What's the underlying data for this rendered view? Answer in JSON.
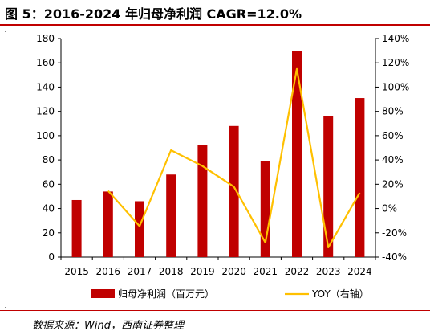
{
  "header": {
    "title": "图 5：2016-2024 年归母净利润 CAGR=12.0%"
  },
  "footer": {
    "source": "数据来源：Wind，西南证券整理"
  },
  "colors": {
    "bar": "#c00000",
    "line": "#ffc000",
    "rule": "#c00000"
  },
  "chart_data": {
    "type": "bar",
    "categories": [
      "2015",
      "2016",
      "2017",
      "2018",
      "2019",
      "2020",
      "2021",
      "2022",
      "2023",
      "2024"
    ],
    "series": [
      {
        "name": "归母净利润（百万元）",
        "type": "bar",
        "axis": "left",
        "values": [
          47,
          54,
          46,
          68,
          92,
          108,
          79,
          170,
          116,
          131
        ]
      },
      {
        "name": "YOY（右轴）",
        "type": "line",
        "axis": "right",
        "values": [
          null,
          14.5,
          -14.5,
          48,
          35,
          18,
          -28,
          115,
          -32,
          13
        ]
      }
    ],
    "y_left": {
      "min": 0,
      "max": 180,
      "ticks": [
        0,
        20,
        40,
        60,
        80,
        100,
        120,
        140,
        160,
        180
      ]
    },
    "y_right": {
      "min": -40,
      "max": 140,
      "ticks": [
        -40,
        -20,
        0,
        20,
        40,
        60,
        80,
        100,
        120,
        140
      ],
      "tick_suffix": "%"
    },
    "legend": "bottom",
    "grid": false
  }
}
